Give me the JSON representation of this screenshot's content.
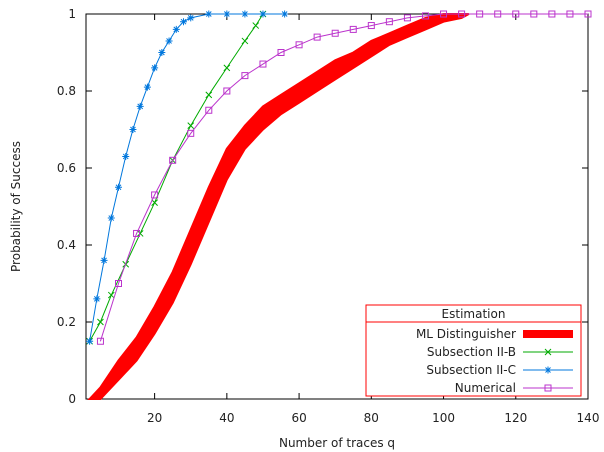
{
  "chart_data": {
    "type": "line",
    "xlabel": "Number of traces q",
    "ylabel": "Probability of Success",
    "xlim": [
      1,
      140
    ],
    "ylim": [
      0,
      1
    ],
    "xticks": [
      20,
      40,
      60,
      80,
      100,
      120,
      140
    ],
    "yticks": [
      0,
      0.2,
      0.4,
      0.6,
      0.8,
      1
    ],
    "grid": false,
    "legend": {
      "title": "Estimation",
      "placement": "bottom-right",
      "color": "#ff0000"
    },
    "series": [
      {
        "name": "ML Distinguisher",
        "style": "band",
        "color": "#ff0000",
        "x": [
          2,
          5,
          10,
          15,
          20,
          25,
          30,
          35,
          40,
          45,
          50,
          55,
          60,
          65,
          70,
          75,
          80,
          85,
          90,
          95,
          100,
          105,
          107
        ],
        "lower": [
          0.0,
          0.0,
          0.05,
          0.1,
          0.17,
          0.25,
          0.35,
          0.46,
          0.57,
          0.65,
          0.7,
          0.74,
          0.77,
          0.8,
          0.83,
          0.86,
          0.89,
          0.92,
          0.94,
          0.96,
          0.98,
          0.99,
          1.0
        ],
        "upper": [
          0.0,
          0.03,
          0.1,
          0.16,
          0.24,
          0.33,
          0.44,
          0.55,
          0.65,
          0.71,
          0.76,
          0.79,
          0.82,
          0.85,
          0.88,
          0.9,
          0.93,
          0.95,
          0.97,
          0.99,
          1.0,
          1.0,
          1.0
        ]
      },
      {
        "name": "Subsection II-B",
        "style": "line",
        "marker": "x",
        "color": "#00aa00",
        "x": [
          2,
          5,
          8,
          12,
          16,
          20,
          25,
          30,
          35,
          40,
          45,
          48,
          50
        ],
        "y": [
          0.15,
          0.2,
          0.27,
          0.35,
          0.43,
          0.51,
          0.62,
          0.71,
          0.79,
          0.86,
          0.93,
          0.97,
          1.0
        ]
      },
      {
        "name": "Subsection II-C",
        "style": "line",
        "marker": "star",
        "color": "#0077dd",
        "x": [
          2,
          4,
          6,
          8,
          10,
          12,
          14,
          16,
          18,
          20,
          22,
          24,
          26,
          28,
          30,
          35,
          40,
          45,
          50,
          56
        ],
        "y": [
          0.15,
          0.26,
          0.36,
          0.47,
          0.55,
          0.63,
          0.7,
          0.76,
          0.81,
          0.86,
          0.9,
          0.93,
          0.96,
          0.98,
          0.99,
          1.0,
          1.0,
          1.0,
          1.0,
          1.0
        ]
      },
      {
        "name": "Numerical",
        "style": "line",
        "marker": "square",
        "color": "#bb33cc",
        "x": [
          5,
          10,
          15,
          20,
          25,
          30,
          35,
          40,
          45,
          50,
          55,
          60,
          65,
          70,
          75,
          80,
          85,
          90,
          95,
          100,
          105,
          110,
          115,
          120,
          125,
          130,
          135,
          140
        ],
        "y": [
          0.15,
          0.3,
          0.43,
          0.53,
          0.62,
          0.69,
          0.75,
          0.8,
          0.84,
          0.87,
          0.9,
          0.92,
          0.94,
          0.95,
          0.96,
          0.97,
          0.98,
          0.99,
          0.995,
          1.0,
          1.0,
          1.0,
          1.0,
          1.0,
          1.0,
          1.0,
          1.0,
          1.0
        ]
      }
    ]
  }
}
